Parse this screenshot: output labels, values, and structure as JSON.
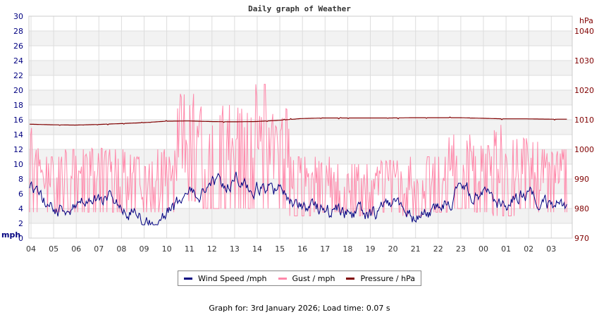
{
  "chart_data": {
    "type": "line",
    "title": "Daily graph of Weather",
    "x_tick_labels": [
      "04",
      "05",
      "06",
      "07",
      "08",
      "09",
      "10",
      "11",
      "12",
      "13",
      "14",
      "15",
      "16",
      "17",
      "18",
      "19",
      "20",
      "21",
      "22",
      "23",
      "00",
      "01",
      "02",
      "03"
    ],
    "left_axis": {
      "label": "mph",
      "range": [
        0,
        30
      ],
      "ticks": [
        0,
        2,
        4,
        6,
        8,
        10,
        12,
        14,
        16,
        18,
        20,
        22,
        24,
        26,
        28,
        30
      ],
      "color": "#000080"
    },
    "right_axis": {
      "label": "hPa",
      "range": [
        970,
        1045
      ],
      "ticks": [
        970,
        980,
        990,
        1000,
        1010,
        1020,
        1030,
        1040
      ],
      "color": "#800000"
    },
    "grid": true,
    "legend_position": "bottom",
    "series": [
      {
        "name": "Wind Speed /mph",
        "color": "#000080",
        "axis": "left",
        "daily_approx": [
          6.5,
          4.0,
          4.2,
          5.5,
          5.0,
          2.5,
          3.2,
          5.5,
          7.2,
          8.0,
          7.2,
          6.5,
          4.0,
          4.0,
          3.6,
          2.8,
          4.8,
          3.0,
          4.0,
          6.5,
          6.0,
          4.0,
          6.5,
          4.6
        ]
      },
      {
        "name": "Gust / mph",
        "color": "#ff88aa",
        "axis": "left",
        "daily_approx_range": [
          [
            3.5,
            15
          ],
          [
            3.5,
            11
          ],
          [
            3.5,
            12
          ],
          [
            3.5,
            12.5
          ],
          [
            3.5,
            12
          ],
          [
            3.5,
            11
          ],
          [
            3.5,
            12
          ],
          [
            5,
            19.5
          ],
          [
            4,
            18
          ],
          [
            4,
            18
          ],
          [
            4,
            20.8
          ],
          [
            4,
            17.5
          ],
          [
            3,
            11
          ],
          [
            3.5,
            11
          ],
          [
            3.5,
            10
          ],
          [
            3,
            10
          ],
          [
            3.5,
            10.5
          ],
          [
            3,
            11
          ],
          [
            3.5,
            11
          ],
          [
            4,
            14
          ],
          [
            3.5,
            12.5
          ],
          [
            3,
            15.3
          ],
          [
            4,
            13.5
          ],
          [
            3.5,
            12
          ]
        ]
      },
      {
        "name": "Pressure / hPa",
        "color": "#800000",
        "axis": "right",
        "daily_approx": [
          1008.5,
          1008.3,
          1008.2,
          1008.4,
          1008.7,
          1009.0,
          1009.5,
          1009.6,
          1009.4,
          1009.3,
          1009.4,
          1009.8,
          1010.4,
          1010.6,
          1010.6,
          1010.6,
          1010.6,
          1010.7,
          1010.7,
          1010.7,
          1010.5,
          1010.3,
          1010.3,
          1010.2
        ]
      }
    ]
  },
  "legend": {
    "items": [
      {
        "label": "Wind Speed /mph",
        "color": "#000080"
      },
      {
        "label": "Gust / mph",
        "color": "#ff88aa"
      },
      {
        "label": "Pressure / hPa",
        "color": "#800000"
      }
    ]
  },
  "footer": {
    "text": "Graph for: 3rd January 2026; Load time: 0.07 s"
  }
}
